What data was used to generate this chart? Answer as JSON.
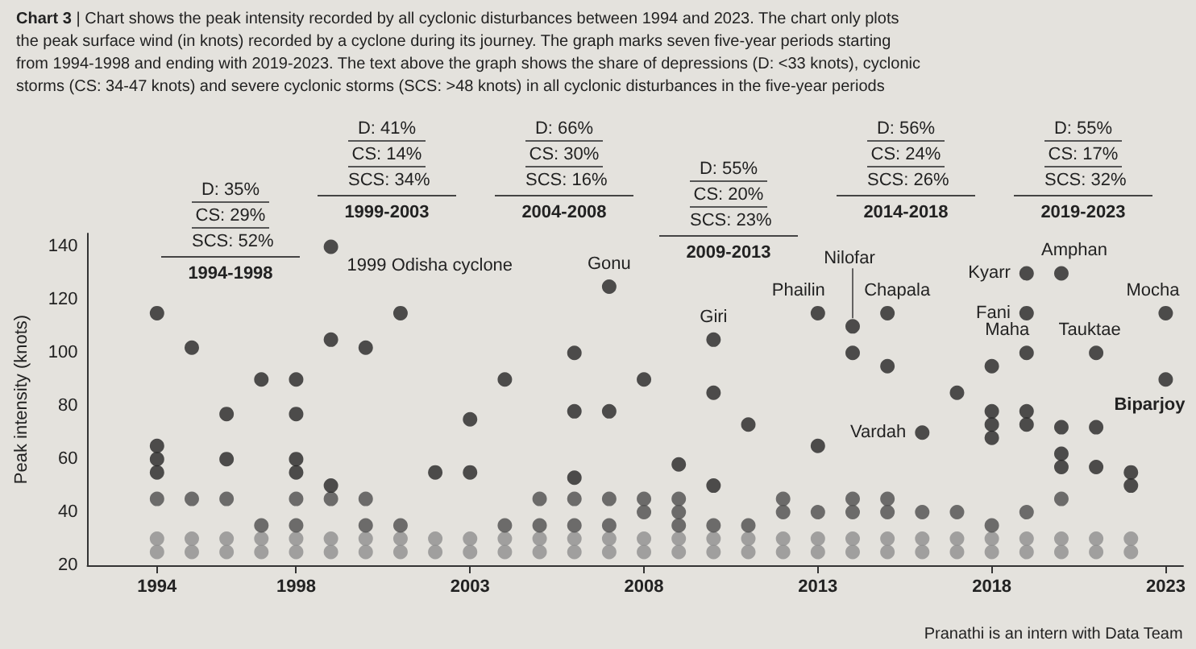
{
  "chart_data": {
    "type": "scatter",
    "title": "Chart 3",
    "subtitle": "| Chart shows the peak intensity recorded by all cyclonic disturbances between 1994 and 2023. The chart only plots the peak surface wind (in knots) recorded by a cyclone during its journey. The graph marks seven five-year periods starting from 1994-1998 and ending with 2019-2023. The text above the graph shows the share of depressions (D: <33 knots), cyclonic storms (CS: 34-47 knots) and severe cyclonic storms (SCS: >48 knots) in all cyclonic disturbances in the five-year periods",
    "ylabel": "Peak intensity (knots)",
    "marker": "circle",
    "xlim": [
      1992,
      2023.5
    ],
    "xticks": [
      1994,
      1998,
      2003,
      2008,
      2013,
      2018,
      2023
    ],
    "ylim": [
      20,
      145
    ],
    "yticks": [
      20,
      40,
      60,
      80,
      100,
      120,
      140
    ],
    "series": [
      {
        "color": "#8f8f8f",
        "x": [
          1994,
          1994,
          1995,
          1995,
          1996,
          1996,
          1997,
          1997,
          1998,
          1998,
          1999,
          1999,
          2000,
          2000,
          2001,
          2001,
          2002,
          2002,
          2003,
          2003,
          2004,
          2004,
          2005,
          2005,
          2006,
          2006,
          2007,
          2007,
          2008,
          2008,
          2009,
          2009,
          2010,
          2010,
          2011,
          2011,
          2012,
          2012,
          2013,
          2013,
          2014,
          2014,
          2015,
          2015,
          2016,
          2016,
          2017,
          2017,
          2018,
          2018,
          2019,
          2019,
          2020,
          2020,
          2021,
          2021,
          2022,
          2022
        ],
        "values": [
          25,
          30,
          25,
          30,
          25,
          30,
          25,
          30,
          25,
          30,
          25,
          30,
          25,
          30,
          25,
          30,
          25,
          30,
          25,
          30,
          25,
          30,
          25,
          30,
          25,
          30,
          25,
          30,
          25,
          30,
          25,
          30,
          25,
          30,
          25,
          30,
          25,
          30,
          25,
          30,
          25,
          30,
          25,
          30,
          25,
          30,
          25,
          30,
          25,
          30,
          25,
          30,
          25,
          30,
          25,
          30,
          25,
          30
        ]
      },
      {
        "color": "#4d4d4d",
        "x": [
          1994,
          1995,
          1996,
          1997,
          1998,
          1998,
          1999,
          2000,
          2000,
          2001,
          2004,
          2005,
          2005,
          2006,
          2006,
          2007,
          2007,
          2008,
          2008,
          2009,
          2009,
          2009,
          2010,
          2011,
          2012,
          2012,
          2013,
          2014,
          2014,
          2015,
          2015,
          2016,
          2017,
          2018,
          2019,
          2020
        ],
        "values": [
          45,
          45,
          45,
          35,
          45,
          35,
          45,
          45,
          35,
          35,
          35,
          45,
          35,
          45,
          35,
          45,
          35,
          45,
          40,
          45,
          40,
          35,
          35,
          35,
          45,
          40,
          40,
          45,
          40,
          45,
          40,
          40,
          40,
          35,
          40,
          45
        ]
      },
      {
        "color": "#262626",
        "x": [
          1994,
          1994,
          1994,
          1994,
          1995,
          1996,
          1996,
          1997,
          1998,
          1998,
          1998,
          1998,
          1999,
          1999,
          1999,
          2000,
          2001,
          2002,
          2003,
          2003,
          2004,
          2006,
          2006,
          2006,
          2007,
          2007,
          2008,
          2009,
          2010,
          2010,
          2010,
          2011,
          2013,
          2013,
          2014,
          2014,
          2015,
          2015,
          2016,
          2017,
          2018,
          2018,
          2018,
          2018,
          2019,
          2019,
          2019,
          2019,
          2019,
          2020,
          2020,
          2020,
          2020,
          2021,
          2021,
          2021,
          2022,
          2022,
          2023,
          2023
        ],
        "values": [
          115,
          65,
          60,
          55,
          102,
          77,
          60,
          90,
          90,
          77,
          60,
          55,
          140,
          105,
          50,
          102,
          115,
          55,
          75,
          55,
          90,
          100,
          78,
          53,
          125,
          78,
          90,
          58,
          105,
          85,
          50,
          73,
          115,
          65,
          110,
          100,
          115,
          95,
          70,
          85,
          95,
          78,
          73,
          68,
          130,
          115,
          100,
          78,
          73,
          130,
          72,
          62,
          57,
          100,
          72,
          57,
          55,
          50,
          115,
          90
        ]
      }
    ],
    "annotations": [
      "D: 35%\nCS: 29%\nSCS: 52%\n1994-1998",
      "D: 41%\nCS: 14%\nSCS: 34%\n1999-2003",
      "D: 66%\nCS: 30%\nSCS: 16%\n2004-2008",
      "D: 55%\nCS: 20%\nSCS: 23%\n2009-2013",
      "D: 56%\nCS: 24%\nSCS: 26%\n2014-2018",
      "D: 55%\nCS: 17%\nSCS: 32%\n2019-2023",
      {
        "text": "1999 Odisha cyclone",
        "x": 1999,
        "y": 140
      },
      {
        "text": "Gonu",
        "x": 2007,
        "y": 125
      },
      {
        "text": "Giri",
        "x": 2010,
        "y": 105
      },
      {
        "text": "Phailin",
        "x": 2013,
        "y": 115
      },
      {
        "text": "Nilofar",
        "x": 2014,
        "y": 110
      },
      {
        "text": "Chapala",
        "x": 2015,
        "y": 115
      },
      {
        "text": "Vardah",
        "x": 2016,
        "y": 70
      },
      {
        "text": "Kyarr",
        "x": 2019,
        "y": 130
      },
      {
        "text": "Fani",
        "x": 2019,
        "y": 115
      },
      {
        "text": "Maha",
        "x": 2019,
        "y": 100
      },
      {
        "text": "Amphan",
        "x": 2020,
        "y": 130
      },
      {
        "text": "Tauktae",
        "x": 2021,
        "y": 100
      },
      {
        "text": "Mocha",
        "x": 2023,
        "y": 115
      },
      {
        "text": "Biparjoy",
        "x": 2023,
        "y": 90
      },
      "Pranathi is an intern with Data Team"
    ]
  }
}
